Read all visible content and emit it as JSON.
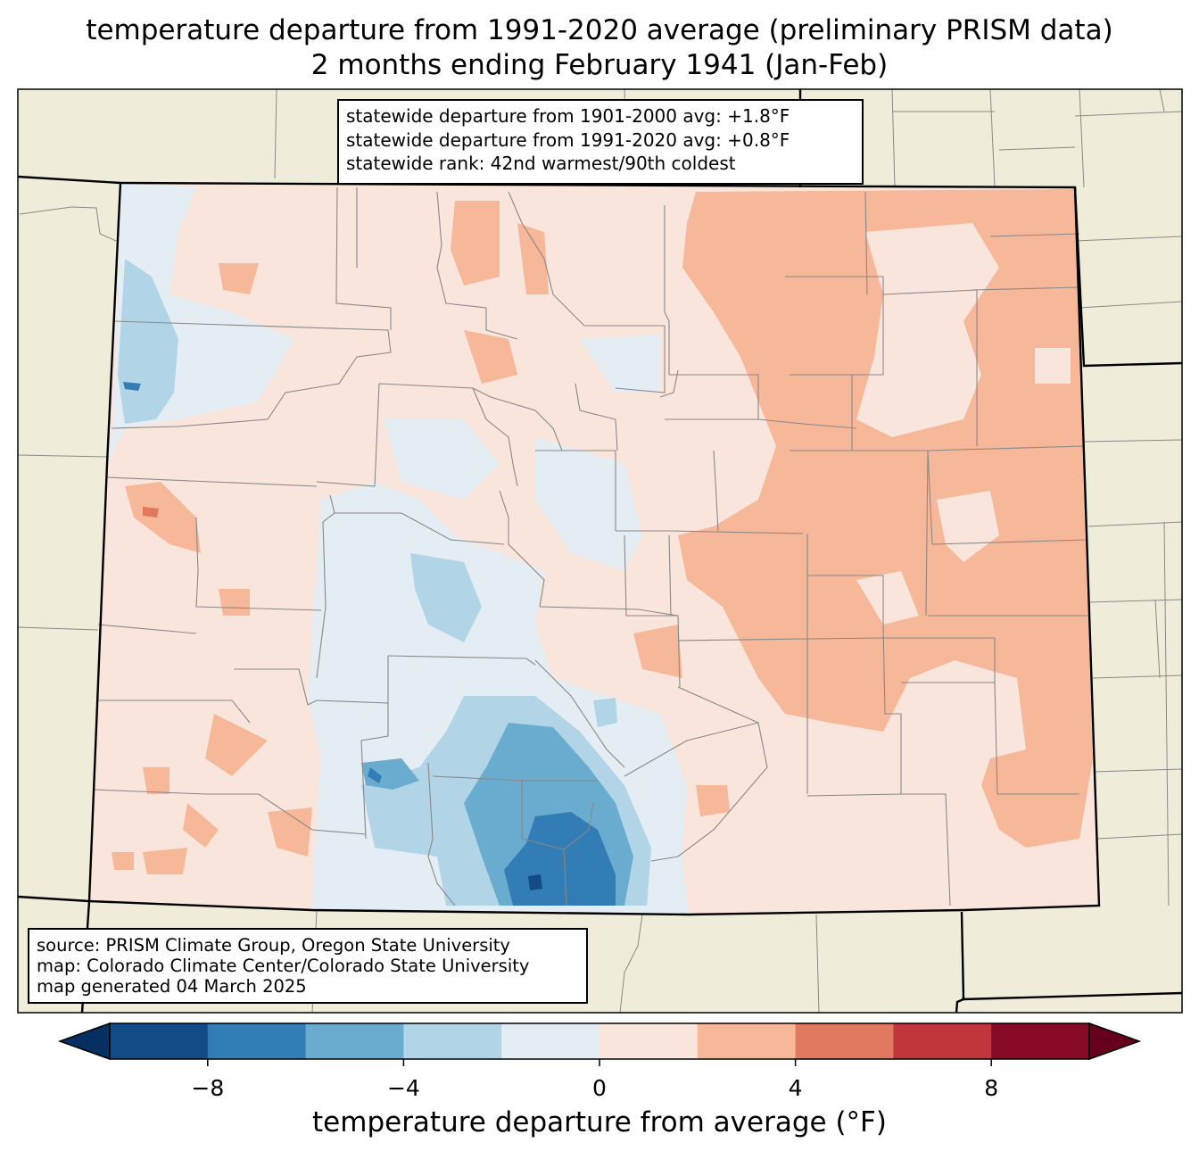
{
  "title": {
    "line1": "temperature departure from 1991-2020 average (preliminary PRISM data)",
    "line2": "2 months ending February 1941 (Jan-Feb)"
  },
  "stats": {
    "line1": "statewide departure from 1901-2000 avg: +1.8°F",
    "line2": "statewide departure from 1991-2020 avg: +0.8°F",
    "line3": "statewide rank: 42nd warmest/90th coldest"
  },
  "source": {
    "line1": "source: PRISM Climate Group, Oregon State University",
    "line2": "map: Colorado Climate Center/Colorado State University",
    "line3": "map generated 04 March 2025"
  },
  "colorbar": {
    "label": "temperature departure from average (°F)",
    "ticks": [
      "−8",
      "−4",
      "0",
      "4",
      "8"
    ],
    "tick_values": [
      -8,
      -4,
      0,
      4,
      8
    ],
    "range": [
      -10,
      10
    ],
    "step": 2,
    "colors": [
      "#053061",
      "#134b87",
      "#327db6",
      "#6aacd0",
      "#b1d5e7",
      "#e3edf3",
      "#f9e5dc",
      "#f7b799",
      "#e17860",
      "#c0363c",
      "#860a25",
      "#67001f"
    ]
  },
  "colors": {
    "background_land": "#efedda",
    "county_lines": "#888888",
    "state_lines": "#000000"
  }
}
